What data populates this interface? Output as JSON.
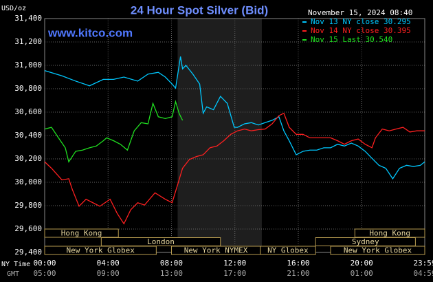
{
  "chart_data": {
    "type": "line",
    "title": "24 Hour Spot Silver (Bid)",
    "y_unit": "USD/oz",
    "timestamp": "November 15, 2024 08:40",
    "website": "www.kitco.com",
    "x_row_labels": [
      "NY Time",
      "GMT"
    ],
    "xlim": [
      0,
      23.98
    ],
    "ylim": [
      29400,
      31400
    ],
    "grid": true,
    "shade": [
      8.39,
      13.7
    ],
    "xticks": [
      {
        "value": 0,
        "label": "00:00"
      },
      {
        "value": 4,
        "label": "04:00"
      },
      {
        "value": 8,
        "label": "08:00"
      },
      {
        "value": 12,
        "label": "12:00"
      },
      {
        "value": 16,
        "label": "16:00"
      },
      {
        "value": 20,
        "label": "20:00"
      },
      {
        "value": 23.98,
        "label": "23:59"
      }
    ],
    "gmt_labels": [
      "05:00",
      "09:00",
      "13:00",
      "17:00",
      "21:00",
      "01:00",
      "04:59"
    ],
    "yticks": [
      {
        "value": 29400,
        "label": "29,400"
      },
      {
        "value": 29600,
        "label": "29,600"
      },
      {
        "value": 29800,
        "label": "29,800"
      },
      {
        "value": 30000,
        "label": "30,000"
      },
      {
        "value": 30200,
        "label": "30,200"
      },
      {
        "value": 30400,
        "label": "30,400"
      },
      {
        "value": 30600,
        "label": "30,600"
      },
      {
        "value": 30800,
        "label": "30,800"
      },
      {
        "value": 31000,
        "label": "31,000"
      },
      {
        "value": 31200,
        "label": "31,200"
      },
      {
        "value": 31400,
        "label": "31,400"
      }
    ],
    "sessions": [
      [
        {
          "label": "Hong Kong",
          "start": 0,
          "end": 4.65
        },
        {
          "label": "Hong Kong",
          "start": 19.57,
          "end": 23.98
        }
      ],
      [
        {
          "label": "London",
          "start": 3.57,
          "end": 11.09
        },
        {
          "label": "Sydney",
          "start": 17.09,
          "end": 23.39
        }
      ],
      [
        {
          "label": "New York Globex",
          "start": 0,
          "end": 7.04
        },
        {
          "label": "New York NYMEX",
          "start": 8.0,
          "end": 13.6
        },
        {
          "label": "NY Globex",
          "start": 13.6,
          "end": 17.09
        },
        {
          "label": "New York Globex",
          "start": 18.04,
          "end": 23.98
        }
      ]
    ],
    "series": [
      {
        "name": "Nov 13 NY close 30.295",
        "color": "#00c8ff",
        "x": [
          0,
          1.09,
          1.96,
          2.83,
          3.7,
          4.35,
          5.0,
          5.87,
          6.52,
          7.17,
          7.61,
          8.04,
          8.26,
          8.57,
          8.7,
          8.91,
          9.35,
          9.78,
          10.0,
          10.22,
          10.65,
          11.09,
          11.52,
          11.96,
          12.17,
          12.61,
          13.04,
          13.48,
          13.91,
          14.35,
          14.78,
          15.09,
          15.43,
          15.87,
          16.3,
          16.74,
          17.17,
          17.61,
          18.04,
          18.48,
          18.91,
          19.35,
          19.78,
          20.22,
          20.65,
          21.09,
          21.52,
          21.96,
          22.39,
          22.83,
          23.26,
          23.7,
          23.98
        ],
        "values": [
          30955,
          30910,
          30865,
          30825,
          30880,
          30880,
          30900,
          30865,
          30925,
          30940,
          30900,
          30840,
          30805,
          31075,
          30970,
          31000,
          30925,
          30840,
          30590,
          30645,
          30620,
          30735,
          30675,
          30470,
          30470,
          30500,
          30510,
          30490,
          30510,
          30530,
          30560,
          30440,
          30355,
          30235,
          30265,
          30275,
          30275,
          30295,
          30295,
          30325,
          30310,
          30335,
          30310,
          30265,
          30205,
          30145,
          30120,
          30030,
          30120,
          30145,
          30135,
          30145,
          30175
        ]
      },
      {
        "name": "Nov 14 NY close 30.395",
        "color": "#ff2020",
        "x": [
          0,
          0.43,
          1.09,
          1.52,
          1.74,
          2.17,
          2.61,
          3.04,
          3.48,
          4.13,
          4.57,
          5.0,
          5.43,
          5.87,
          6.3,
          6.96,
          7.61,
          8.04,
          8.39,
          8.7,
          9.13,
          9.57,
          10.0,
          10.43,
          10.87,
          11.3,
          11.74,
          12.17,
          12.61,
          13.04,
          13.48,
          13.91,
          14.35,
          14.78,
          15.09,
          15.43,
          15.87,
          16.3,
          16.74,
          17.17,
          18.04,
          18.48,
          18.91,
          19.35,
          19.78,
          20.22,
          20.65,
          20.87,
          21.3,
          21.74,
          22.17,
          22.61,
          23.04,
          23.48,
          23.98
        ],
        "values": [
          30175,
          30120,
          30020,
          30030,
          29940,
          29795,
          29855,
          29825,
          29795,
          29855,
          29735,
          29645,
          29765,
          29825,
          29805,
          29910,
          29855,
          29825,
          29980,
          30120,
          30195,
          30220,
          30235,
          30295,
          30310,
          30355,
          30410,
          30440,
          30455,
          30440,
          30450,
          30455,
          30500,
          30570,
          30590,
          30470,
          30410,
          30410,
          30380,
          30380,
          30380,
          30355,
          30325,
          30355,
          30370,
          30325,
          30295,
          30380,
          30455,
          30440,
          30455,
          30470,
          30430,
          30440,
          30440
        ]
      },
      {
        "name": "Nov 15 Last 30.540",
        "color": "#20e020",
        "x": [
          0,
          0.43,
          0.87,
          1.3,
          1.52,
          1.96,
          2.39,
          2.83,
          3.26,
          3.7,
          3.91,
          4.35,
          4.78,
          5.22,
          5.65,
          6.09,
          6.52,
          6.83,
          7.17,
          7.61,
          8.04,
          8.26,
          8.48,
          8.7
        ],
        "values": [
          30455,
          30470,
          30380,
          30295,
          30175,
          30265,
          30275,
          30295,
          30310,
          30355,
          30380,
          30355,
          30325,
          30275,
          30440,
          30510,
          30500,
          30675,
          30560,
          30545,
          30560,
          30690,
          30590,
          30530
        ]
      }
    ]
  }
}
